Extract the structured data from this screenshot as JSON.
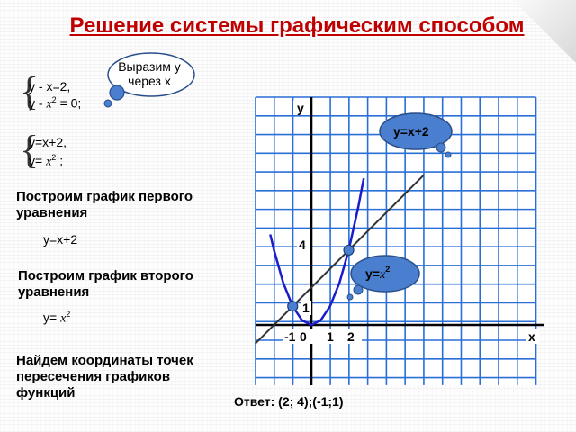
{
  "title": "Решение системы графическим способом",
  "cloud_note": "Выразим у через х",
  "system1": {
    "line1": "у - х=2,",
    "line2a": "у -",
    "line2_x": "x",
    "line2_exp": "2",
    "line2b": "= 0;"
  },
  "system2": {
    "line1": "у=х+2,",
    "line2a": "у=",
    "line2_x": "x",
    "line2_exp": "2",
    "line2b": ";"
  },
  "step1": "Построим график первого уравнения",
  "step1_eq": "у=х+2",
  "step2": "Построим график второго уравнения",
  "step2_eq_a": "у=",
  "step2_eq_x": "x",
  "step2_eq_exp": "2",
  "step3": "Найдем координаты точек пересечения графиков функций",
  "answer": "Ответ: (2; 4);(-1;1)",
  "graph": {
    "y_axis_label": "у",
    "x_axis_label": "х",
    "tick_4": "4",
    "tick_1_y": "1",
    "tick_m1": "-1",
    "tick_0": "0",
    "tick_1_x": "1",
    "tick_2": "2",
    "line_bubble": "у=х+2",
    "parabola_bubble_a": "у=",
    "parabola_bubble_x": "x",
    "parabola_bubble_exp": "2"
  },
  "chart_data": {
    "type": "line",
    "series": [
      {
        "name": "у=х+2",
        "x": [
          -3,
          6
        ],
        "y": [
          -1,
          8
        ]
      },
      {
        "name": "у=x²",
        "x": [
          -2.2,
          -2,
          -1.5,
          -1,
          -0.5,
          0,
          0.5,
          1,
          1.5,
          2,
          2.5,
          2.8
        ],
        "y": [
          4.84,
          4,
          2.25,
          1,
          0.25,
          0,
          0.25,
          1,
          2.25,
          4,
          6.25,
          7.84
        ]
      }
    ],
    "points": [
      {
        "x": 2,
        "y": 4
      },
      {
        "x": -1,
        "y": 1
      }
    ],
    "xlim": [
      -3,
      10
    ],
    "ylim": [
      -3,
      10
    ],
    "colors": {
      "grid": "#2a6fd6",
      "parabola": "#1c1cc8",
      "line": "#333333",
      "point": "#4a7fd0",
      "bubble": "#4a7fd0"
    }
  }
}
